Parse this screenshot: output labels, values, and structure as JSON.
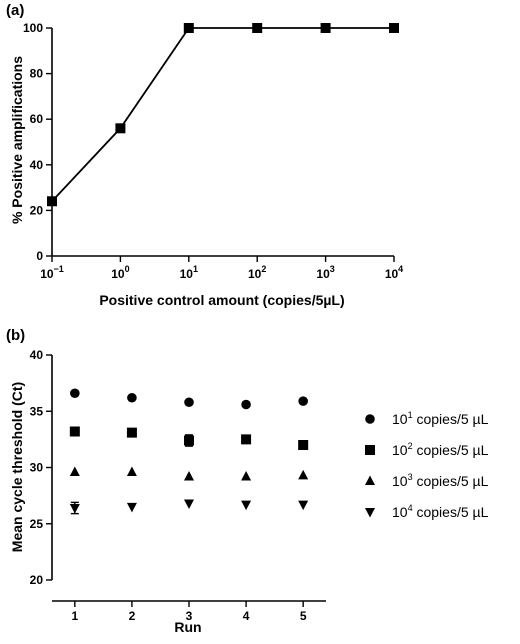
{
  "chart_data": [
    {
      "panel": "(a)",
      "type": "line",
      "xlabel": "Positive control amount (copies/5µL)",
      "ylabel": "% Positive amplifications",
      "x_scale": "log",
      "xlim": [
        0.1,
        10000
      ],
      "ylim": [
        0,
        100
      ],
      "x_ticks": [
        {
          "value": 0.1,
          "base": "10",
          "exp": "−1"
        },
        {
          "value": 1,
          "base": "10",
          "exp": "0"
        },
        {
          "value": 10,
          "base": "10",
          "exp": "1"
        },
        {
          "value": 100,
          "base": "10",
          "exp": "2"
        },
        {
          "value": 1000,
          "base": "10",
          "exp": "3"
        },
        {
          "value": 10000,
          "base": "10",
          "exp": "4"
        }
      ],
      "y_ticks": [
        "0",
        "20",
        "40",
        "60",
        "80",
        "100"
      ],
      "marker": "square",
      "x": [
        0.1,
        1,
        10,
        100,
        1000,
        10000
      ],
      "y": [
        24,
        56,
        100,
        100,
        100,
        100
      ],
      "grid": false
    },
    {
      "panel": "(b)",
      "type": "scatter",
      "xlabel": "Run",
      "ylabel": "Mean cycle threshold (Ct)",
      "xlim": [
        0.6,
        5.4
      ],
      "ylim": [
        20,
        40
      ],
      "x_ticks": [
        "1",
        "2",
        "3",
        "4",
        "5"
      ],
      "y_ticks": [
        "20",
        "25",
        "30",
        "35",
        "40"
      ],
      "categories": [
        1,
        2,
        3,
        4,
        5
      ],
      "legend_position": "right",
      "grid": false,
      "series": [
        {
          "name": "10^1 copies/5 µL",
          "base": "10",
          "exp": "1",
          "suffix": " copies/5 µL",
          "marker": "circle",
          "values": [
            36.6,
            36.2,
            35.8,
            35.6,
            35.9
          ],
          "errors": [
            0,
            0,
            0,
            0,
            0
          ]
        },
        {
          "name": "10^2 copies/5 µL",
          "base": "10",
          "exp": "2",
          "suffix": " copies/5 µL",
          "marker": "square",
          "values": [
            33.2,
            33.1,
            32.4,
            32.5,
            32.0
          ],
          "errors": [
            0,
            0,
            0.5,
            0,
            0
          ]
        },
        {
          "name": "10^3 copies/5 µL",
          "base": "10",
          "exp": "3",
          "suffix": " copies/5 µL",
          "marker": "triangle-up",
          "values": [
            29.6,
            29.6,
            29.2,
            29.2,
            29.3
          ],
          "errors": [
            0,
            0,
            0,
            0,
            0
          ]
        },
        {
          "name": "10^4 copies/5 µL",
          "base": "10",
          "exp": "4",
          "suffix": " copies/5 µL",
          "marker": "triangle-down",
          "values": [
            26.4,
            26.5,
            26.8,
            26.7,
            26.7
          ],
          "errors": [
            0.5,
            0,
            0,
            0,
            0
          ]
        }
      ]
    }
  ]
}
